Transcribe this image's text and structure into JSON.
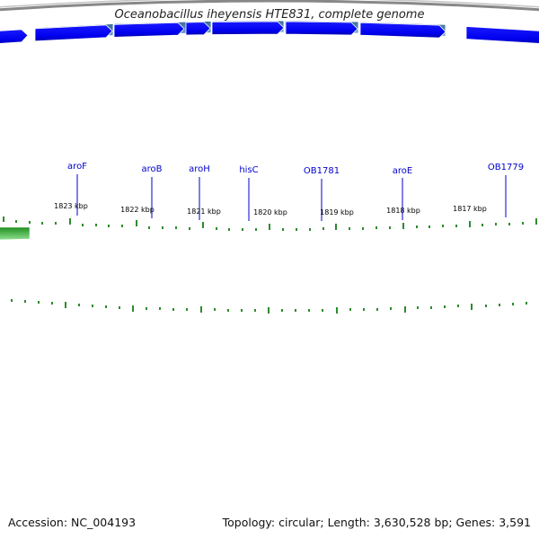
{
  "title": "Oceanobacillus iheyensis HTE831, complete genome",
  "footer": {
    "accession": "Accession: NC_004193",
    "summary": "Topology: circular; Length: 3,630,528 bp; Genes: 3,591"
  },
  "colors": {
    "cds": "#0000ee",
    "gene_track": "#4f86b5",
    "other_feature": "#2eae2e",
    "ticks": "#2e8b2e",
    "backbone": "#888888",
    "gene_label": "#0000cc"
  },
  "scale_labels": [
    {
      "text": "1823 kbp",
      "kbp": 1823
    },
    {
      "text": "1822 kbp",
      "kbp": 1822
    },
    {
      "text": "1821 kbp",
      "kbp": 1821
    },
    {
      "text": "1820 kbp",
      "kbp": 1820
    },
    {
      "text": "1819 kbp",
      "kbp": 1819
    },
    {
      "text": "1818 kbp",
      "kbp": 1818
    },
    {
      "text": "1817 kbp",
      "kbp": 1817
    }
  ],
  "gene_labels": [
    {
      "text": "aroF"
    },
    {
      "text": "aroB"
    },
    {
      "text": "aroH"
    },
    {
      "text": "hisC"
    },
    {
      "text": "OB1781"
    },
    {
      "text": "aroE"
    },
    {
      "text": "OB1779"
    }
  ]
}
